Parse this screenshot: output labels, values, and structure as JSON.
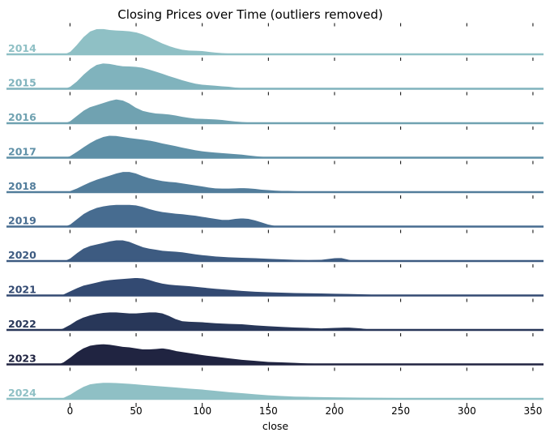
{
  "chart_data": {
    "type": "ridgeline",
    "title": "Closing Prices over Time (outliers removed)",
    "xlabel": "close",
    "ylabel": "",
    "xlim": [
      -48,
      358
    ],
    "xticks": [
      0,
      50,
      100,
      150,
      200,
      250,
      300,
      350
    ],
    "grid": false,
    "legend": "none",
    "series": [
      {
        "name": "2014",
        "color": "#8fc0c5",
        "x": [
          -5,
          0,
          5,
          10,
          15,
          20,
          25,
          30,
          35,
          40,
          45,
          50,
          55,
          60,
          65,
          70,
          75,
          80,
          85,
          90,
          95,
          100,
          105,
          110,
          115,
          120,
          125,
          130
        ],
        "density": [
          0.0,
          0.12,
          0.38,
          0.68,
          0.9,
          0.99,
          1.0,
          0.96,
          0.94,
          0.93,
          0.91,
          0.87,
          0.79,
          0.68,
          0.56,
          0.44,
          0.34,
          0.26,
          0.2,
          0.17,
          0.16,
          0.15,
          0.12,
          0.09,
          0.07,
          0.05,
          0.02,
          0.0
        ]
      },
      {
        "name": "2015",
        "color": "#80b3bd",
        "x": [
          -5,
          0,
          5,
          10,
          15,
          20,
          25,
          30,
          35,
          40,
          45,
          50,
          55,
          60,
          65,
          70,
          75,
          80,
          85,
          90,
          95,
          100,
          105,
          110,
          115,
          120,
          125,
          130,
          135,
          140,
          145,
          150
        ],
        "density": [
          0.0,
          0.1,
          0.3,
          0.56,
          0.78,
          0.94,
          1.0,
          0.98,
          0.93,
          0.89,
          0.88,
          0.87,
          0.83,
          0.76,
          0.68,
          0.6,
          0.51,
          0.43,
          0.35,
          0.28,
          0.22,
          0.18,
          0.16,
          0.14,
          0.12,
          0.1,
          0.07,
          0.05,
          0.03,
          0.02,
          0.01,
          0.0
        ]
      },
      {
        "name": "2016",
        "color": "#70a2b1",
        "x": [
          -5,
          0,
          5,
          10,
          15,
          20,
          25,
          30,
          35,
          40,
          45,
          50,
          55,
          60,
          65,
          70,
          75,
          80,
          85,
          90,
          95,
          100,
          105,
          110,
          115,
          120,
          125,
          130,
          135,
          140,
          145,
          150,
          160,
          170
        ],
        "density": [
          0.0,
          0.1,
          0.3,
          0.5,
          0.64,
          0.72,
          0.8,
          0.88,
          0.94,
          0.9,
          0.78,
          0.62,
          0.5,
          0.44,
          0.4,
          0.38,
          0.36,
          0.32,
          0.27,
          0.23,
          0.2,
          0.19,
          0.18,
          0.17,
          0.15,
          0.12,
          0.09,
          0.07,
          0.05,
          0.04,
          0.03,
          0.02,
          0.01,
          0.0
        ]
      },
      {
        "name": "2017",
        "color": "#5f90a7",
        "x": [
          -5,
          0,
          5,
          10,
          15,
          20,
          25,
          30,
          35,
          40,
          45,
          50,
          55,
          60,
          65,
          70,
          75,
          80,
          85,
          90,
          95,
          100,
          105,
          110,
          115,
          120,
          125,
          130,
          135,
          140,
          145,
          150,
          160,
          170
        ],
        "density": [
          0.0,
          0.08,
          0.24,
          0.42,
          0.58,
          0.72,
          0.82,
          0.87,
          0.86,
          0.82,
          0.78,
          0.75,
          0.72,
          0.68,
          0.63,
          0.57,
          0.52,
          0.47,
          0.41,
          0.36,
          0.31,
          0.27,
          0.24,
          0.22,
          0.2,
          0.18,
          0.16,
          0.14,
          0.11,
          0.08,
          0.06,
          0.04,
          0.02,
          0.0
        ]
      },
      {
        "name": "2018",
        "color": "#527d9b",
        "x": [
          -5,
          0,
          5,
          10,
          15,
          20,
          25,
          30,
          35,
          40,
          45,
          50,
          55,
          60,
          65,
          70,
          75,
          80,
          85,
          90,
          95,
          100,
          105,
          110,
          115,
          120,
          125,
          130,
          135,
          140,
          145,
          150,
          155,
          160,
          165,
          170,
          175,
          180,
          185,
          190,
          195,
          200,
          205,
          210,
          215,
          220,
          225
        ],
        "density": [
          0.0,
          0.06,
          0.16,
          0.28,
          0.4,
          0.5,
          0.58,
          0.66,
          0.74,
          0.8,
          0.8,
          0.74,
          0.64,
          0.56,
          0.5,
          0.45,
          0.42,
          0.4,
          0.36,
          0.32,
          0.28,
          0.24,
          0.2,
          0.17,
          0.16,
          0.16,
          0.17,
          0.18,
          0.17,
          0.15,
          0.12,
          0.1,
          0.08,
          0.07,
          0.07,
          0.06,
          0.05,
          0.05,
          0.04,
          0.03,
          0.03,
          0.04,
          0.04,
          0.03,
          0.02,
          0.01,
          0.0
        ]
      },
      {
        "name": "2019",
        "color": "#476c90",
        "x": [
          -5,
          0,
          5,
          10,
          15,
          20,
          25,
          30,
          35,
          40,
          45,
          50,
          55,
          60,
          65,
          70,
          75,
          80,
          85,
          90,
          95,
          100,
          105,
          110,
          115,
          120,
          125,
          130,
          135,
          140,
          145,
          150,
          155,
          160,
          170,
          180
        ],
        "density": [
          0.0,
          0.1,
          0.3,
          0.5,
          0.64,
          0.74,
          0.8,
          0.84,
          0.86,
          0.86,
          0.86,
          0.84,
          0.78,
          0.7,
          0.63,
          0.58,
          0.55,
          0.52,
          0.5,
          0.47,
          0.44,
          0.4,
          0.36,
          0.32,
          0.28,
          0.28,
          0.32,
          0.34,
          0.32,
          0.26,
          0.18,
          0.1,
          0.05,
          0.03,
          0.01,
          0.0
        ]
      },
      {
        "name": "2020",
        "color": "#3d5b81",
        "x": [
          -5,
          0,
          5,
          10,
          15,
          20,
          25,
          30,
          35,
          40,
          45,
          50,
          55,
          60,
          65,
          70,
          75,
          80,
          85,
          90,
          95,
          100,
          110,
          120,
          130,
          140,
          150,
          160,
          170,
          180,
          190,
          200,
          205,
          210,
          215,
          220
        ],
        "density": [
          0.0,
          0.12,
          0.32,
          0.5,
          0.6,
          0.66,
          0.72,
          0.78,
          0.82,
          0.82,
          0.76,
          0.66,
          0.56,
          0.5,
          0.46,
          0.42,
          0.4,
          0.38,
          0.36,
          0.32,
          0.28,
          0.25,
          0.2,
          0.17,
          0.15,
          0.13,
          0.11,
          0.09,
          0.07,
          0.06,
          0.07,
          0.13,
          0.14,
          0.08,
          0.02,
          0.0
        ]
      },
      {
        "name": "2021",
        "color": "#334a72",
        "x": [
          -10,
          -5,
          0,
          5,
          10,
          15,
          20,
          25,
          30,
          35,
          40,
          45,
          50,
          55,
          60,
          65,
          70,
          75,
          80,
          90,
          100,
          110,
          120,
          130,
          140,
          150,
          160,
          170,
          180,
          190,
          200,
          210,
          220,
          230,
          240,
          250,
          260,
          270
        ],
        "density": [
          0.0,
          0.06,
          0.18,
          0.3,
          0.4,
          0.46,
          0.52,
          0.58,
          0.62,
          0.64,
          0.66,
          0.68,
          0.7,
          0.68,
          0.62,
          0.54,
          0.48,
          0.44,
          0.42,
          0.38,
          0.33,
          0.28,
          0.24,
          0.2,
          0.17,
          0.15,
          0.13,
          0.12,
          0.11,
          0.1,
          0.09,
          0.08,
          0.07,
          0.05,
          0.04,
          0.02,
          0.01,
          0.0
        ]
      },
      {
        "name": "2022",
        "color": "#283759",
        "x": [
          -10,
          -5,
          0,
          5,
          10,
          15,
          20,
          25,
          30,
          35,
          40,
          45,
          50,
          55,
          60,
          65,
          70,
          75,
          80,
          85,
          90,
          100,
          110,
          120,
          130,
          140,
          150,
          160,
          170,
          180,
          190,
          200,
          210,
          220,
          230,
          240
        ],
        "density": [
          0.0,
          0.08,
          0.22,
          0.38,
          0.5,
          0.58,
          0.64,
          0.68,
          0.7,
          0.7,
          0.68,
          0.66,
          0.66,
          0.68,
          0.7,
          0.7,
          0.66,
          0.56,
          0.44,
          0.36,
          0.34,
          0.32,
          0.28,
          0.26,
          0.24,
          0.2,
          0.17,
          0.14,
          0.12,
          0.1,
          0.08,
          0.1,
          0.12,
          0.08,
          0.02,
          0.0
        ]
      },
      {
        "name": "2023",
        "color": "#202441",
        "x": [
          -10,
          -5,
          0,
          5,
          10,
          15,
          20,
          25,
          30,
          35,
          40,
          45,
          50,
          55,
          60,
          65,
          70,
          75,
          80,
          90,
          100,
          110,
          120,
          130,
          140,
          150,
          160,
          170,
          180,
          190,
          200,
          210,
          220,
          230
        ],
        "density": [
          0.0,
          0.1,
          0.28,
          0.48,
          0.64,
          0.74,
          0.78,
          0.8,
          0.78,
          0.74,
          0.7,
          0.68,
          0.64,
          0.6,
          0.6,
          0.62,
          0.64,
          0.6,
          0.54,
          0.46,
          0.38,
          0.32,
          0.26,
          0.2,
          0.16,
          0.12,
          0.1,
          0.08,
          0.06,
          0.05,
          0.04,
          0.03,
          0.01,
          0.0
        ]
      },
      {
        "name": "2024",
        "color": "#8fc0c5",
        "x": [
          -10,
          -5,
          0,
          5,
          10,
          15,
          20,
          25,
          30,
          35,
          40,
          45,
          50,
          55,
          60,
          65,
          70,
          75,
          80,
          90,
          100,
          110,
          120,
          130,
          140,
          150,
          160,
          170,
          180,
          190,
          200,
          220,
          240,
          260,
          280,
          300
        ],
        "density": [
          0.0,
          0.06,
          0.18,
          0.34,
          0.48,
          0.58,
          0.62,
          0.64,
          0.64,
          0.63,
          0.62,
          0.6,
          0.58,
          0.56,
          0.54,
          0.52,
          0.5,
          0.48,
          0.46,
          0.42,
          0.38,
          0.33,
          0.28,
          0.24,
          0.2,
          0.16,
          0.13,
          0.11,
          0.1,
          0.09,
          0.08,
          0.07,
          0.06,
          0.05,
          0.03,
          0.0
        ]
      }
    ]
  }
}
